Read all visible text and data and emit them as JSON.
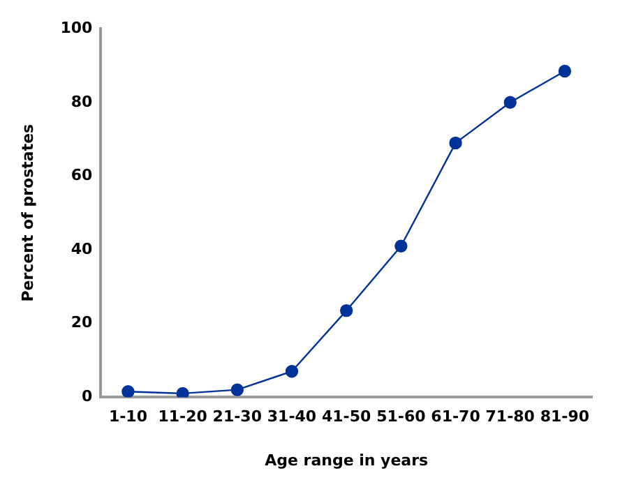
{
  "chart_data": {
    "type": "line",
    "xlabel": "Age range in years",
    "ylabel": "Percent of prostates",
    "categories": [
      "1-10",
      "11-20",
      "21-30",
      "31-40",
      "41-50",
      "51-60",
      "61-70",
      "71-80",
      "81-90"
    ],
    "series": [
      {
        "color": "#003399",
        "values": [
          1.5,
          1,
          2,
          7,
          23.5,
          41,
          69,
          80,
          88.5
        ]
      }
    ],
    "ylim": [
      0,
      100
    ],
    "yticks": [
      0,
      20,
      40,
      60,
      80,
      100
    ],
    "grid": false,
    "legend": false,
    "marker": "circle",
    "line_style": "solid"
  }
}
